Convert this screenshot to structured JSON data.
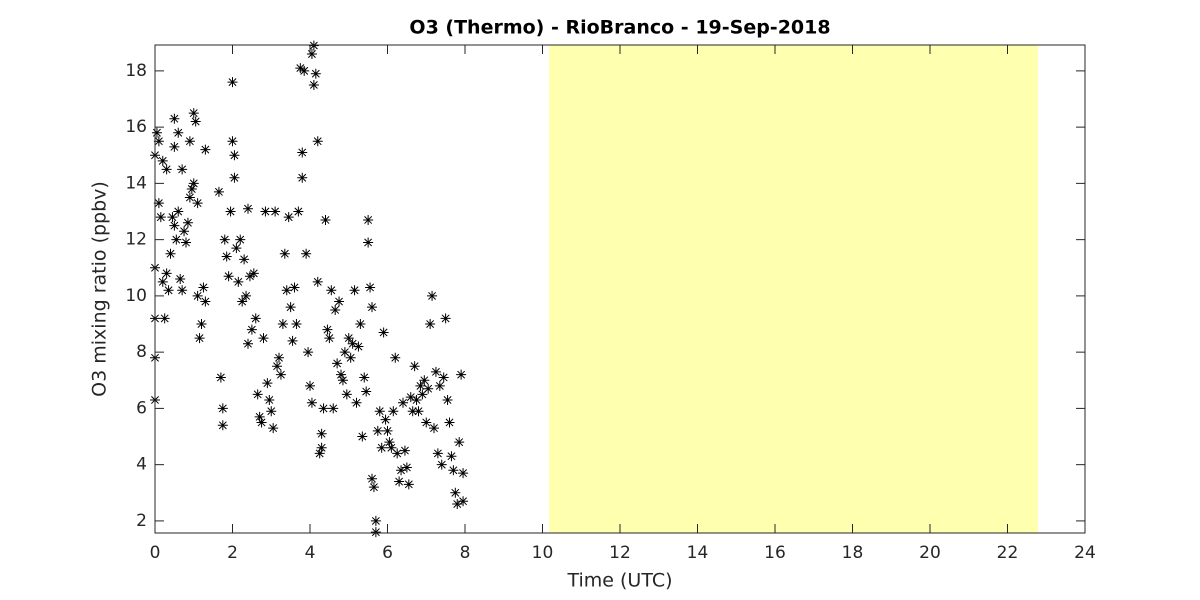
{
  "chart_data": {
    "type": "scatter",
    "title": "O3 (Thermo) - RioBranco - 19-Sep-2018",
    "xlabel": "Time (UTC)",
    "ylabel": "O3 mixing ratio (ppbv)",
    "color": "#000000",
    "marker": "*",
    "shaded_xrange": [
      10.17,
      22.79
    ],
    "shaded_color": "#ffffb0",
    "xlim": [
      0,
      24
    ],
    "xticks": [
      0,
      2,
      4,
      6,
      8,
      10,
      12,
      14,
      16,
      18,
      20,
      22,
      24
    ],
    "ylim": [
      1.57,
      18.92
    ],
    "yticks": [
      2,
      4,
      6,
      8,
      10,
      12,
      14,
      16,
      18
    ],
    "x": [
      0,
      0,
      0,
      0,
      0,
      0.05,
      0.1,
      0.1,
      0.15,
      0.2,
      0.2,
      0.25,
      0.3,
      0.3,
      0.35,
      0.4,
      0.45,
      0.5,
      0.5,
      0.5,
      0.55,
      0.6,
      0.6,
      0.65,
      0.7,
      0.7,
      0.75,
      0.8,
      0.85,
      0.9,
      0.9,
      0.95,
      1.0,
      1.0,
      1.05,
      1.1,
      1.1,
      1.15,
      1.2,
      1.25,
      1.3,
      1.3,
      1.65,
      1.7,
      1.75,
      1.75,
      1.8,
      1.85,
      1.9,
      1.95,
      2.0,
      2.0,
      2.05,
      2.05,
      2.1,
      2.15,
      2.2,
      2.25,
      2.3,
      2.35,
      2.4,
      2.4,
      2.45,
      2.5,
      2.55,
      2.6,
      2.65,
      2.7,
      2.75,
      2.8,
      2.85,
      2.9,
      2.95,
      3.0,
      3.05,
      3.1,
      3.15,
      3.2,
      3.25,
      3.3,
      3.35,
      3.4,
      3.45,
      3.5,
      3.55,
      3.6,
      3.65,
      3.7,
      3.75,
      3.8,
      3.8,
      3.85,
      3.9,
      3.95,
      4.0,
      4.05,
      4.05,
      4.1,
      4.1,
      4.15,
      4.2,
      4.2,
      4.25,
      4.3,
      4.3,
      4.35,
      4.4,
      4.45,
      4.5,
      4.55,
      4.6,
      4.65,
      4.7,
      4.75,
      4.8,
      4.85,
      4.9,
      4.95,
      5.0,
      5.05,
      5.1,
      5.15,
      5.2,
      5.25,
      5.3,
      5.35,
      5.4,
      5.45,
      5.5,
      5.5,
      5.55,
      5.6,
      5.6,
      5.65,
      5.7,
      5.7,
      5.75,
      5.8,
      5.85,
      5.9,
      5.95,
      6.0,
      6.05,
      6.1,
      6.15,
      6.2,
      6.25,
      6.3,
      6.35,
      6.4,
      6.45,
      6.5,
      6.55,
      6.6,
      6.65,
      6.7,
      6.75,
      6.8,
      6.85,
      6.9,
      6.95,
      7.0,
      7.05,
      7.1,
      7.15,
      7.2,
      7.25,
      7.3,
      7.35,
      7.4,
      7.45,
      7.5,
      7.55,
      7.6,
      7.65,
      7.7,
      7.75,
      7.8,
      7.85,
      7.9,
      7.95,
      7.95
    ],
    "values": [
      6.3,
      7.8,
      9.2,
      11,
      15,
      15.8,
      15.5,
      13.3,
      12.8,
      14.8,
      10.5,
      9.2,
      10.8,
      14.5,
      10.2,
      11.5,
      12.8,
      12.5,
      15.3,
      16.3,
      12,
      15.8,
      13,
      10.6,
      14.5,
      10.2,
      12.3,
      11.9,
      12.6,
      13.5,
      15.5,
      13.8,
      16.5,
      14,
      16.2,
      13.3,
      10,
      8.5,
      9,
      10.3,
      9.8,
      15.2,
      13.7,
      7.1,
      6,
      5.4,
      12,
      11.4,
      10.7,
      13,
      17.6,
      15.5,
      15,
      14.2,
      11.7,
      10.5,
      12,
      9.8,
      11.3,
      10,
      8.3,
      13.1,
      10.7,
      8.8,
      10.8,
      9.2,
      6.5,
      5.7,
      5.5,
      8.5,
      13,
      6.9,
      6.3,
      5.9,
      5.3,
      13,
      7.5,
      7.8,
      7.2,
      9,
      11.5,
      10.2,
      12.8,
      9.6,
      8.4,
      10.3,
      9,
      13,
      18.1,
      15.1,
      14.2,
      18,
      11.5,
      8,
      6.8,
      6.2,
      18.6,
      17.5,
      18.9,
      17.9,
      15.5,
      10.5,
      4.4,
      5.1,
      4.6,
      6,
      12.7,
      8.8,
      8.5,
      10.2,
      6,
      9.5,
      7.6,
      9.8,
      7.2,
      7,
      8,
      6.5,
      8.5,
      7.8,
      8.3,
      10.2,
      6.2,
      8.2,
      9,
      5,
      7.1,
      6.6,
      12.7,
      11.9,
      10.3,
      9.6,
      3.5,
      3.2,
      2,
      1.6,
      5.2,
      5.9,
      4.6,
      8.7,
      5.6,
      5.2,
      4.8,
      4.6,
      5.9,
      7.8,
      4.4,
      3.4,
      3.8,
      6.2,
      4.5,
      3.9,
      3.3,
      6.4,
      5.9,
      7.5,
      6.3,
      5.9,
      6.8,
      6.5,
      7,
      5.5,
      6.7,
      9,
      10,
      5.3,
      7.3,
      4.4,
      6.8,
      4,
      7.1,
      9.2,
      6.3,
      5.5,
      4.3,
      3.8,
      3,
      2.6,
      4.8,
      7.2,
      3.7,
      2.7
    ]
  }
}
